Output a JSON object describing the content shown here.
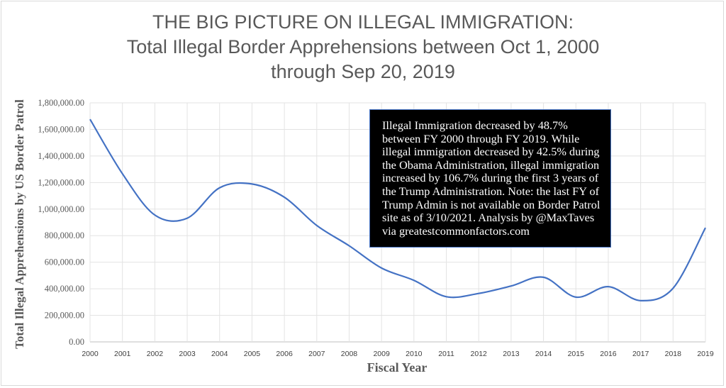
{
  "chart_data": {
    "type": "line",
    "title": [
      "THE BIG PICTURE ON ILLEGAL IMMIGRATION:",
      "Total Illegal Border Apprehensions between Oct 1, 2000",
      "through Sep 20, 2019"
    ],
    "xlabel": "Fiscal Year",
    "ylabel": "Total Illegal Apprehensions by US Border Patrol",
    "x": [
      "2000",
      "2001",
      "2002",
      "2003",
      "2004",
      "2005",
      "2006",
      "2007",
      "2008",
      "2009",
      "2010",
      "2011",
      "2012",
      "2013",
      "2014",
      "2015",
      "2016",
      "2017",
      "2018",
      "2019"
    ],
    "values": [
      1676438,
      1266214,
      955310,
      931557,
      1160395,
      1189075,
      1089092,
      876704,
      723825,
      556041,
      463382,
      340252,
      364768,
      420789,
      486651,
      337117,
      415816,
      310531,
      404142,
      859501
    ],
    "ylim": [
      0,
      1800000
    ],
    "yticks": [
      "0.00",
      "200,000.00",
      "400,000.00",
      "600,000.00",
      "800,000.00",
      "1,000,000.00",
      "1,200,000.00",
      "1,400,000.00",
      "1,600,000.00",
      "1,800,000.00"
    ],
    "grid": true,
    "smooth": true,
    "line_color": "#4472c4",
    "annotation": "Illegal Immigration decreased by 48.7% between FY 2000 through FY 2019. While illegal immigration decreased by 42.5% during the Obama Administration, illegal immigration increased by 106.7% during the first 3 years of the Trump Administration. Note: the last FY of Trump Admin is not available on Border Patrol site as of 3/10/2021. Analysis by @MaxTaves via greatestcommonfactors.com"
  }
}
